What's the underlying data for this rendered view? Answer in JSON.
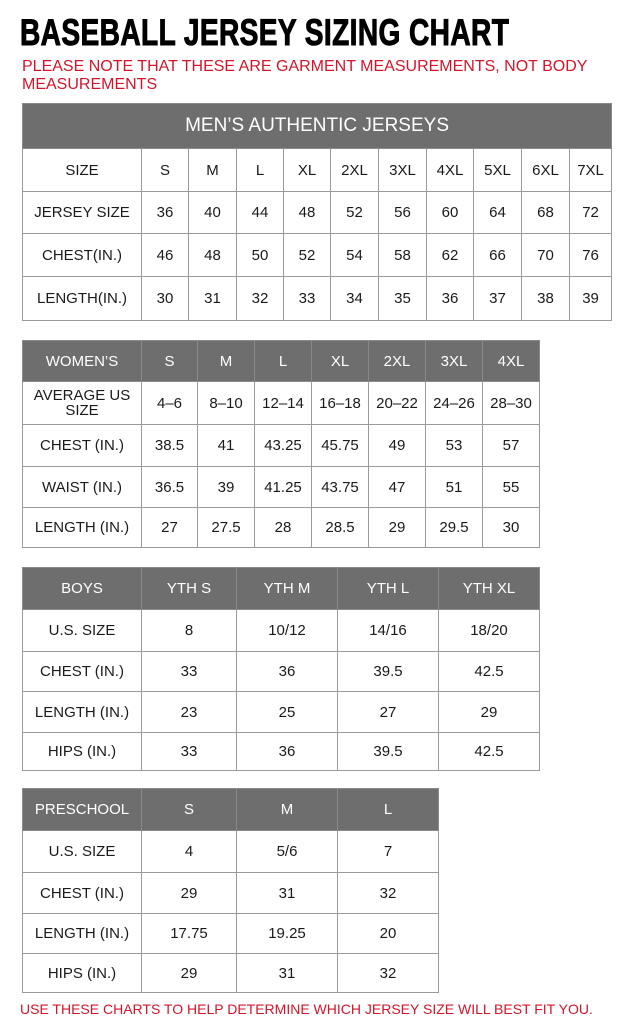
{
  "title": "BASEBALL JERSEY SIZING CHART",
  "note": "PLEASE NOTE THAT THESE ARE GARMENT MEASUREMENTS, NOT BODY MEASUREMENTS",
  "footer": "USE THESE CHARTS TO HELP DETERMINE WHICH JERSEY SIZE WILL BEST FIT YOU.",
  "colors": {
    "header_gray": "#6e6e6e",
    "note_red": "#d4142b"
  },
  "tables": [
    {
      "id": "mens",
      "banner": "MEN’S AUTHENTIC JERSEYS",
      "header_style": "plain",
      "rows": [
        [
          "SIZE",
          "S",
          "M",
          "L",
          "XL",
          "2XL",
          "3XL",
          "4XL",
          "5XL",
          "6XL",
          "7XL"
        ],
        [
          "JERSEY SIZE",
          "36",
          "40",
          "44",
          "48",
          "52",
          "56",
          "60",
          "64",
          "68",
          "72"
        ],
        [
          "CHEST(IN.)",
          "46",
          "48",
          "50",
          "52",
          "54",
          "58",
          "62",
          "66",
          "70",
          "76"
        ],
        [
          "LENGTH(IN.)",
          "30",
          "31",
          "32",
          "33",
          "34",
          "35",
          "36",
          "37",
          "38",
          "39"
        ]
      ]
    },
    {
      "id": "womens",
      "header_style": "gray",
      "rows": [
        [
          "WOMEN’S",
          "S",
          "M",
          "L",
          "XL",
          "2XL",
          "3XL",
          "4XL"
        ],
        [
          "AVERAGE US SIZE",
          "4–6",
          "8–10",
          "12–14",
          "16–18",
          "20–22",
          "24–26",
          "28–30"
        ],
        [
          "CHEST (IN.)",
          "38.5",
          "41",
          "43.25",
          "45.75",
          "49",
          "53",
          "57"
        ],
        [
          "WAIST (IN.)",
          "36.5",
          "39",
          "41.25",
          "43.75",
          "47",
          "51",
          "55"
        ],
        [
          "LENGTH (IN.)",
          "27",
          "27.5",
          "28",
          "28.5",
          "29",
          "29.5",
          "30"
        ]
      ]
    },
    {
      "id": "boys",
      "header_style": "gray",
      "rows": [
        [
          "BOYS",
          "YTH S",
          "YTH M",
          "YTH L",
          "YTH XL"
        ],
        [
          "U.S. SIZE",
          "8",
          "10/12",
          "14/16",
          "18/20"
        ],
        [
          "CHEST (IN.)",
          "33",
          "36",
          "39.5",
          "42.5"
        ],
        [
          "LENGTH (IN.)",
          "23",
          "25",
          "27",
          "29"
        ],
        [
          "HIPS (IN.)",
          "33",
          "36",
          "39.5",
          "42.5"
        ]
      ]
    },
    {
      "id": "preschool",
      "header_style": "gray",
      "rows": [
        [
          "PRESCHOOL",
          "S",
          "M",
          "L"
        ],
        [
          "U.S. SIZE",
          "4",
          "5/6",
          "7"
        ],
        [
          "CHEST (IN.)",
          "29",
          "31",
          "32"
        ],
        [
          "LENGTH (IN.)",
          "17.75",
          "19.25",
          "20"
        ],
        [
          "HIPS (IN.)",
          "29",
          "31",
          "32"
        ]
      ]
    }
  ]
}
